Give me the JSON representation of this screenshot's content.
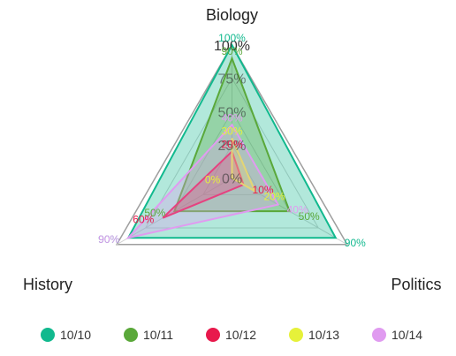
{
  "chart_data": {
    "type": "radar",
    "axes": [
      "Biology",
      "Politics",
      "History"
    ],
    "range": [
      0,
      100
    ],
    "ring_labels": [
      "0%",
      "25%",
      "50%",
      "75%",
      "100%"
    ],
    "grid": true,
    "legend_position": "bottom",
    "series": [
      {
        "name": "10/10",
        "color": "#11b98e",
        "values": [
          100,
          90,
          90
        ],
        "labels": [
          "100%",
          "90%",
          "90%"
        ]
      },
      {
        "name": "10/11",
        "color": "#5aa83a",
        "values": [
          90,
          50,
          50
        ],
        "labels": [
          "90%",
          "50%",
          "50%"
        ]
      },
      {
        "name": "10/12",
        "color": "#e8194c",
        "values": [
          20,
          10,
          60
        ],
        "labels": [
          "20%",
          "10%",
          "60%"
        ]
      },
      {
        "name": "10/13",
        "color": "#e6f13a",
        "values": [
          30,
          20,
          0
        ],
        "labels": [
          "30%",
          "20%",
          "0%"
        ]
      },
      {
        "name": "10/14",
        "color": "#e09bf0",
        "values": [
          40,
          40,
          90
        ],
        "labels": [
          "40%",
          "40%",
          "90%"
        ]
      }
    ]
  }
}
